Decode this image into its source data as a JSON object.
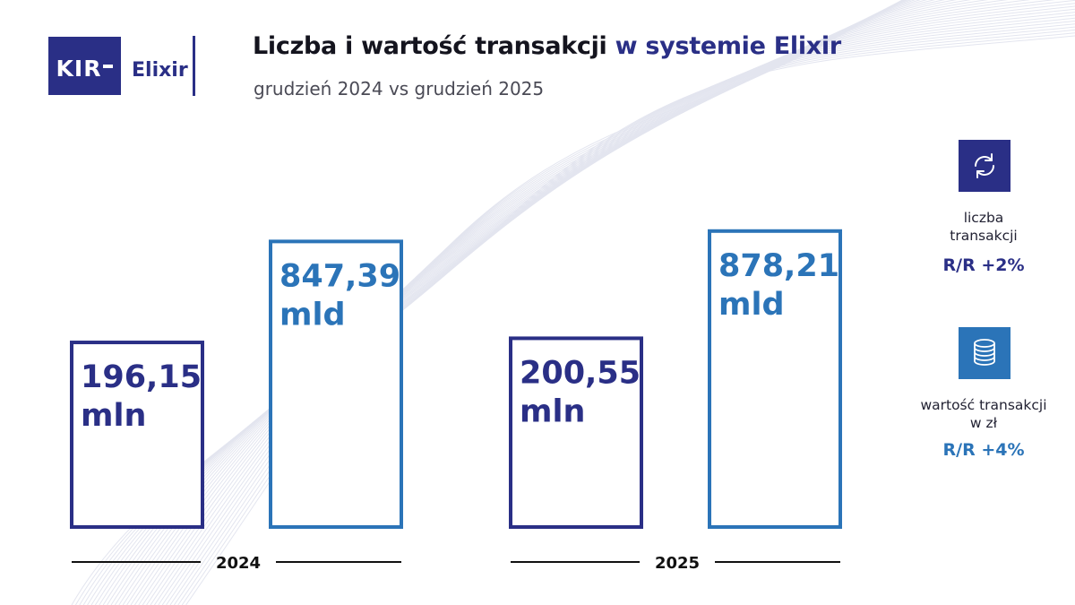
{
  "header": {
    "logo_text": "KIR",
    "product_name": "Elixir",
    "title_main": "Liczba i wartość transakcji",
    "title_highlight": "w systemie Elixir",
    "subtitle": "grudzień 2024 vs grudzień 2025"
  },
  "chart_data": {
    "type": "bar",
    "title": "Liczba i wartość transakcji w systemie Elixir",
    "subtitle": "grudzień 2024 vs grudzień 2025",
    "categories": [
      "2024",
      "2025"
    ],
    "series": [
      {
        "values": [
          196.15,
          200.55
        ],
        "unit": "mln",
        "labels": [
          "196,15",
          "200,55"
        ],
        "color": "#2a2f86"
      },
      {
        "values": [
          847.39,
          878.21
        ],
        "unit": "mld",
        "labels": [
          "847,39",
          "878,21"
        ],
        "color": "#2b74b8"
      }
    ],
    "legend": [
      {
        "text_lines": [
          "liczba",
          "transakcji"
        ],
        "change": "R/R +2%",
        "icon": "exchange-arrows-icon",
        "color": "#2a2f86"
      },
      {
        "text_lines": [
          "wartość transakcji",
          "w zł"
        ],
        "change": "R/R +4%",
        "icon": "coin-stack-icon",
        "color": "#2b74b8"
      }
    ],
    "legend_position": "right",
    "grid": false
  }
}
